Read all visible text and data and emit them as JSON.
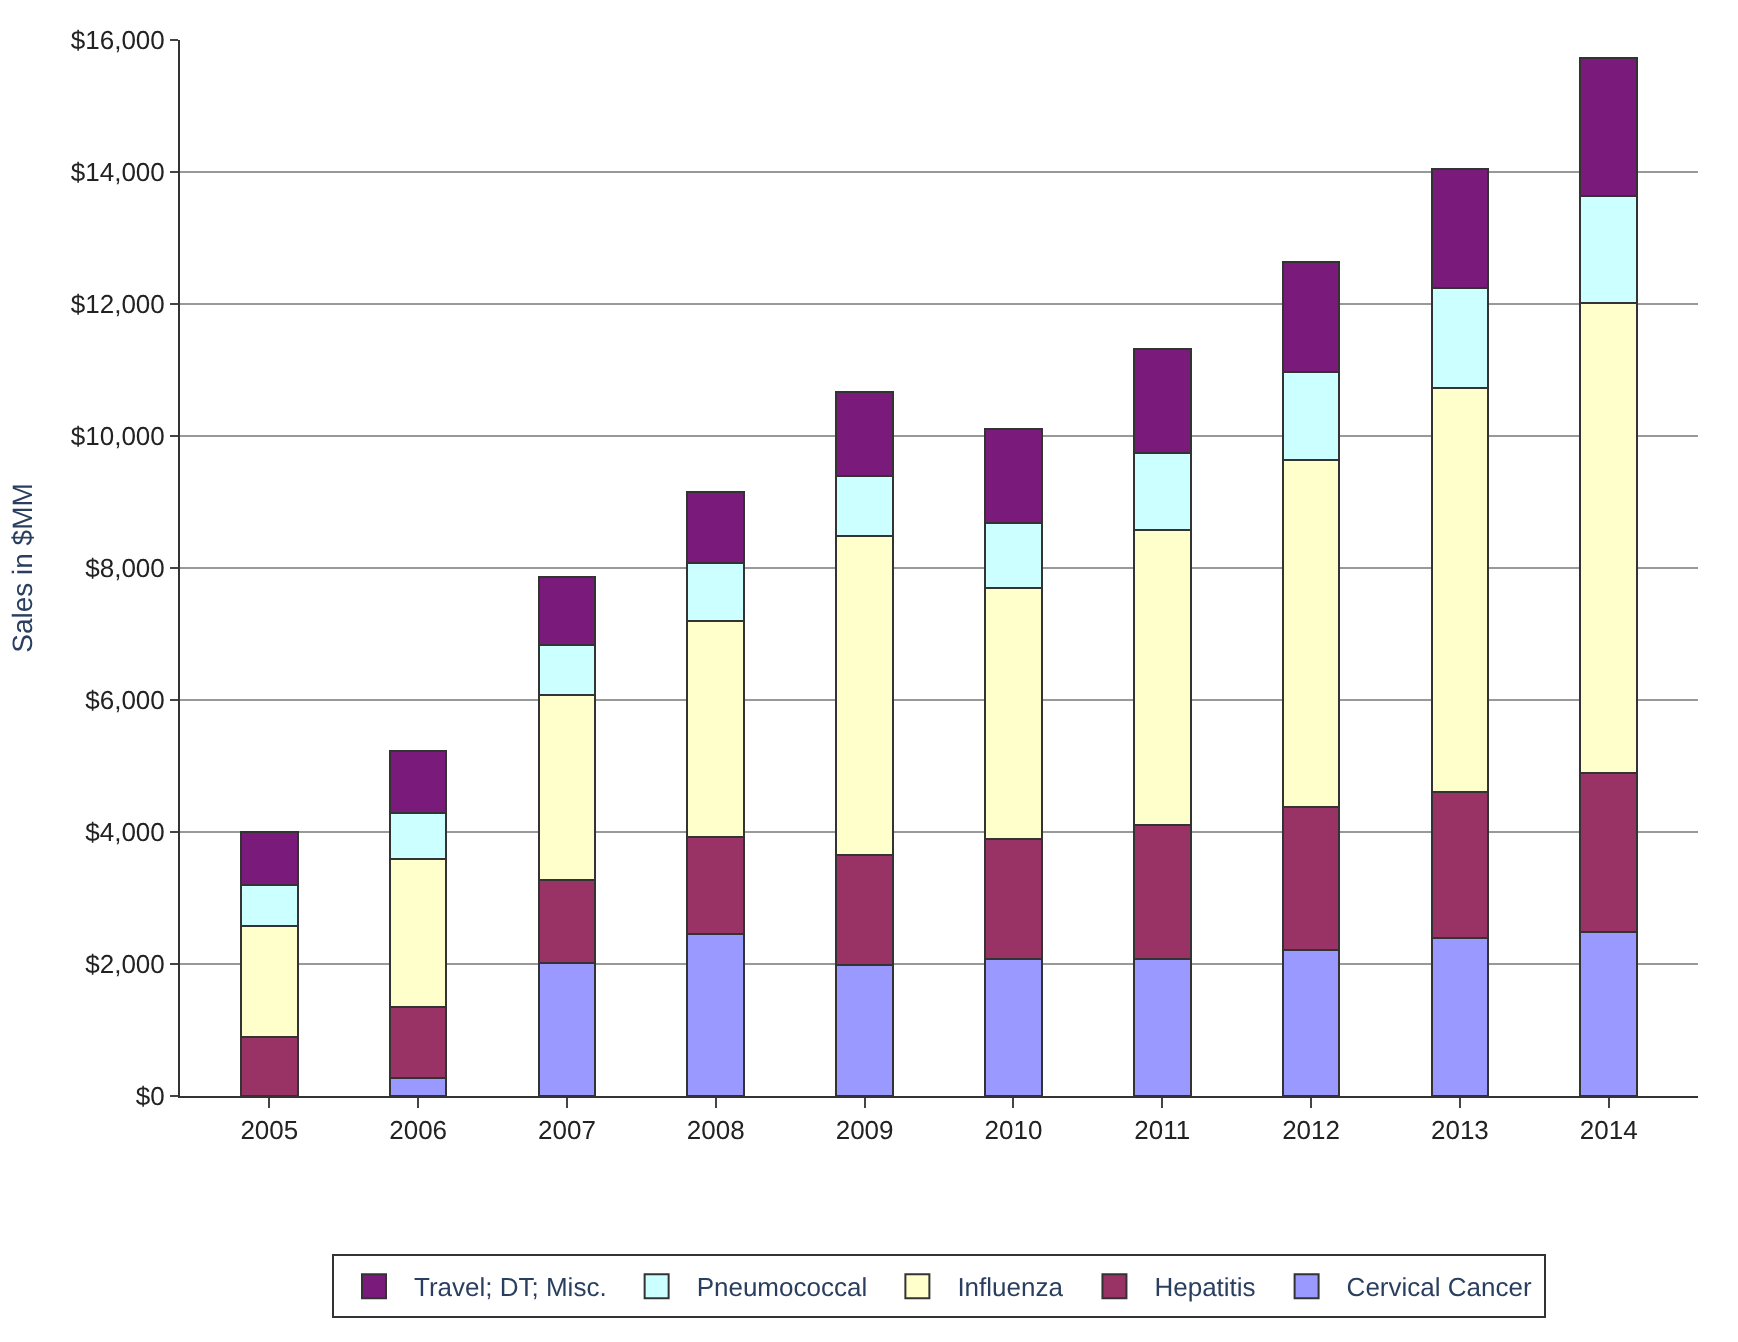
{
  "chart_data": {
    "type": "bar",
    "stacked": true,
    "ylabel": "Sales in $MM",
    "categories": [
      "2005",
      "2006",
      "2007",
      "2008",
      "2009",
      "2010",
      "2011",
      "2012",
      "2013",
      "2014"
    ],
    "series": [
      {
        "name": "Cervical Cancer",
        "color": "#9999ff",
        "values": [
          0,
          280,
          2010,
          2450,
          1980,
          2080,
          2080,
          2210,
          2400,
          2480
        ]
      },
      {
        "name": "Hepatitis",
        "color": "#993366",
        "values": [
          900,
          1070,
          1260,
          1480,
          1670,
          1820,
          2020,
          2170,
          2210,
          2420
        ]
      },
      {
        "name": "Influenza",
        "color": "#ffffcc",
        "values": [
          1680,
          2240,
          2800,
          3260,
          4840,
          3800,
          4470,
          5260,
          6110,
          7110
        ]
      },
      {
        "name": "Pneumococcal",
        "color": "#ccffff",
        "values": [
          620,
          700,
          760,
          890,
          910,
          980,
          1180,
          1330,
          1530,
          1620
        ]
      },
      {
        "name": "Travel; DT; Misc.",
        "color": "#7a1a7a",
        "values": [
          800,
          930,
          1030,
          1070,
          1260,
          1430,
          1570,
          1670,
          1790,
          2090
        ]
      }
    ],
    "ylim": [
      0,
      16000
    ],
    "yticks": [
      {
        "value": 0,
        "label": "$0"
      },
      {
        "value": 2000,
        "label": "$2,000"
      },
      {
        "value": 4000,
        "label": "$4,000"
      },
      {
        "value": 6000,
        "label": "$6,000"
      },
      {
        "value": 8000,
        "label": "$8,000"
      },
      {
        "value": 10000,
        "label": "$10,000"
      },
      {
        "value": 12000,
        "label": "$12,000"
      },
      {
        "value": 14000,
        "label": "$14,000"
      },
      {
        "value": 16000,
        "label": "$16,000"
      }
    ],
    "grid": "y",
    "legend": "bottom"
  }
}
